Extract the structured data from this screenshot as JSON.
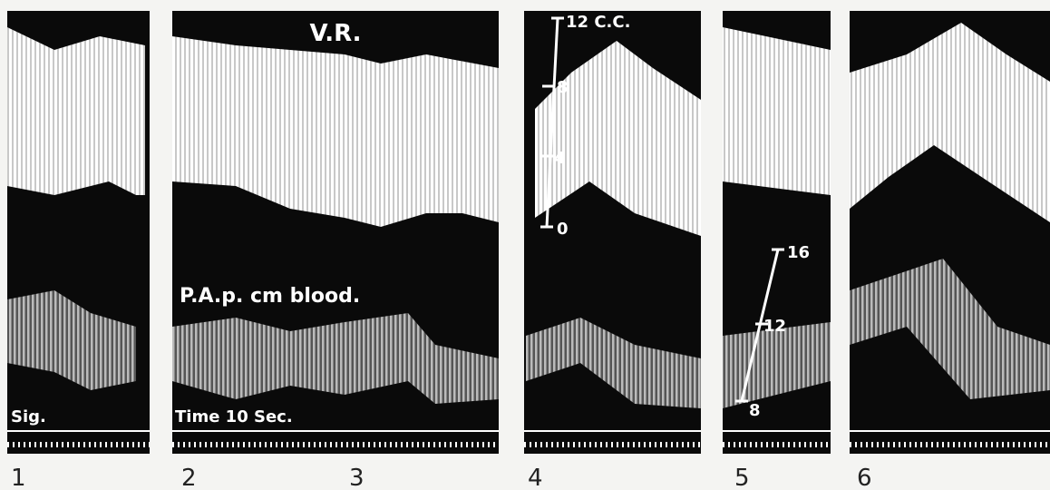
{
  "annotations": {
    "volume_label": "V.R.",
    "pressure_label": "P.A.p. cm blood.",
    "signal_label": "Sig.",
    "time_label": "Time 10 Sec."
  },
  "volume_scale": {
    "unit_label": "12 C.C.",
    "ticks": [
      "8",
      "4",
      "0"
    ]
  },
  "pressure_scale": {
    "ticks": [
      "16",
      "12",
      "8"
    ]
  },
  "panel_numbers": [
    "1",
    "2",
    "3",
    "4",
    "5",
    "6"
  ]
}
